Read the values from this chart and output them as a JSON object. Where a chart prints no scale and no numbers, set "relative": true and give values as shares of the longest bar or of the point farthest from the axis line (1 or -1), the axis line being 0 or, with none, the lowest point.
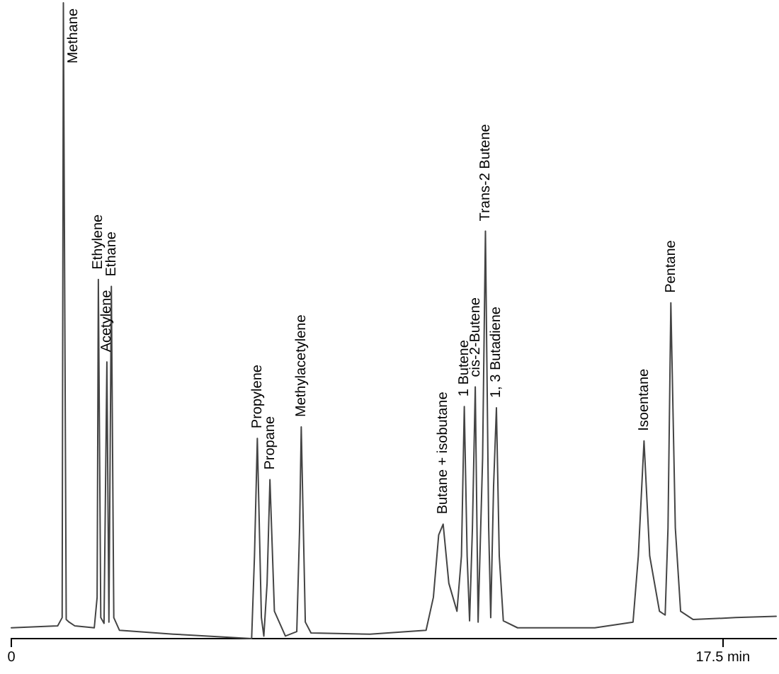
{
  "chart_data": {
    "type": "line",
    "relative": true,
    "tick_labels": "x",
    "grid": false,
    "legend": false,
    "xlim": [
      0,
      18.81
    ],
    "xticks": [
      0,
      {
        "value": 17.5,
        "label": "17.5 min"
      }
    ],
    "series": [
      {
        "color": "#444444",
        "x": [
          0,
          1.14,
          1.25,
          1.28,
          1.35,
          1.42,
          1.56,
          2.04,
          2.11,
          2.14,
          2.2,
          2.28,
          2.35,
          2.4,
          2.46,
          2.52,
          2.66,
          3.98,
          5.91,
          5.98,
          6.05,
          6.15,
          6.21,
          6.29,
          6.36,
          6.47,
          6.74,
          7.02,
          7.09,
          7.13,
          7.23,
          7.37,
          8.82,
          10.2,
          10.38,
          10.51,
          10.62,
          10.76,
          10.96,
          11.07,
          11.14,
          11.21,
          11.27,
          11.34,
          11.41,
          11.48,
          11.59,
          11.66,
          11.74,
          11.79,
          11.86,
          11.93,
          12.0,
          12.1,
          12.45,
          14.35,
          15.29,
          15.42,
          15.56,
          15.7,
          15.94,
          16.08,
          16.15,
          16.22,
          16.33,
          16.46,
          16.77,
          17.81,
          18.81
        ],
        "values": [
          0.017,
          0.02,
          0.033,
          1,
          0.03,
          0.026,
          0.02,
          0.017,
          0.065,
          0.565,
          0.033,
          0.024,
          0.435,
          0.026,
          0.554,
          0.033,
          0.013,
          0.007,
          0,
          0.13,
          0.315,
          0.033,
          0.004,
          0.087,
          0.25,
          0.043,
          0.004,
          0.011,
          0.174,
          0.333,
          0.026,
          0.009,
          0.007,
          0.013,
          0.065,
          0.163,
          0.18,
          0.087,
          0.043,
          0.13,
          0.365,
          0.13,
          0.028,
          0.174,
          0.396,
          0.026,
          0.283,
          0.641,
          0.174,
          0.033,
          0.239,
          0.363,
          0.13,
          0.028,
          0.017,
          0.017,
          0.026,
          0.13,
          0.311,
          0.13,
          0.043,
          0.037,
          0.174,
          0.528,
          0.174,
          0.043,
          0.03,
          0.033,
          0.035
        ]
      }
    ],
    "annotations": [
      {
        "text": "Methane",
        "x": 1.28,
        "y": 1
      },
      {
        "text": "Ethylene",
        "x": 2.14,
        "y": 0.565
      },
      {
        "text": "Acetylene",
        "x": 2.35,
        "y": 0.435
      },
      {
        "text": "Ethane",
        "x": 2.46,
        "y": 0.554
      },
      {
        "text": "Propylene",
        "x": 6.05,
        "y": 0.315
      },
      {
        "text": "Propane",
        "x": 6.36,
        "y": 0.25
      },
      {
        "text": "Methylacetylene",
        "x": 7.13,
        "y": 0.333
      },
      {
        "text": "Butane + isobutane",
        "x": 10.62,
        "y": 0.18
      },
      {
        "text": "1 Butene",
        "x": 11.14,
        "y": 0.365
      },
      {
        "text": "cis-2-Butene",
        "x": 11.41,
        "y": 0.396
      },
      {
        "text": "Trans-2 Butene",
        "x": 11.66,
        "y": 0.641
      },
      {
        "text": "1, 3 Butadiene",
        "x": 11.93,
        "y": 0.363
      },
      {
        "text": "Isoentane",
        "x": 15.56,
        "y": 0.311
      },
      {
        "text": "Pentane",
        "x": 16.22,
        "y": 0.528
      }
    ]
  }
}
